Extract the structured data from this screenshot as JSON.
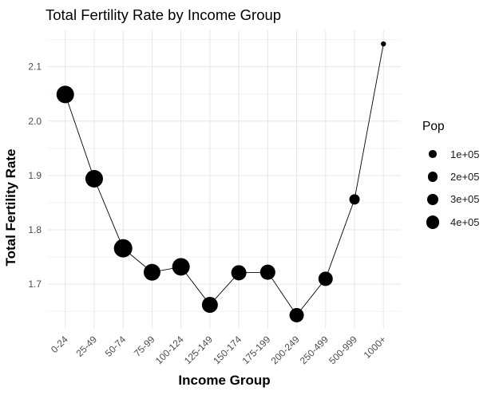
{
  "chart_data": {
    "type": "scatter",
    "subtype": "line-connected bubble scatter (ggplot style)",
    "title": "Total Fertility Rate by Income Group",
    "xlabel": "Income Group",
    "ylabel": "Total Fertility Rate",
    "categories": [
      "0-24",
      "25-49",
      "50-74",
      "75-99",
      "100-124",
      "125-149",
      "150-174",
      "175-199",
      "200-249",
      "250-499",
      "500-999",
      "1000+"
    ],
    "series": [
      {
        "name": "Total Fertility Rate",
        "values": [
          2.049,
          1.894,
          1.766,
          1.722,
          1.732,
          1.662,
          1.721,
          1.722,
          1.643,
          1.71,
          1.856,
          2.142
        ]
      }
    ],
    "point_radius_px": [
      11,
      11,
      11.5,
      10.5,
      11,
      10,
      9.5,
      9.5,
      9,
      9,
      6.5,
      3.2
    ],
    "pop_approx": [
      770000,
      770000,
      850000,
      690000,
      770000,
      620000,
      550000,
      550000,
      480000,
      480000,
      220000,
      30000
    ],
    "y_ticks": [
      1.7,
      1.8,
      1.9,
      2.0,
      2.1
    ],
    "y_tick_labels": [
      "1.7",
      "1.8",
      "1.9",
      "2.0",
      "2.1"
    ],
    "ylim": [
      1.618,
      2.167
    ],
    "x_tick_angle": 45,
    "grid": true,
    "legend": {
      "title": "Pop",
      "position": "right",
      "items": [
        {
          "label": "1e+05",
          "radius_px": 4.8
        },
        {
          "label": "2e+05",
          "radius_px": 6.3
        },
        {
          "label": "3e+05",
          "radius_px": 7.3
        },
        {
          "label": "4e+05",
          "radius_px": 8.3
        }
      ]
    },
    "colors": {
      "point": "#000000",
      "line": "#000000",
      "grid_major": "#e6e6e6",
      "grid_minor": "#f2f2f2",
      "tick_label": "#4d4d4d",
      "background": "#ffffff"
    }
  }
}
